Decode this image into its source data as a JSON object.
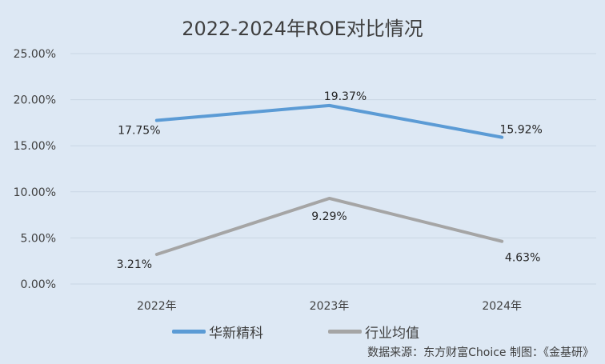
{
  "chart_data": {
    "type": "line",
    "title": "2022-2024年ROE对比情况",
    "categories": [
      "2022年",
      "2023年",
      "2024年"
    ],
    "series": [
      {
        "name": "华新精科",
        "values": [
          17.75,
          19.37,
          15.92
        ],
        "labels": [
          "17.75%",
          "19.37%",
          "15.92%"
        ],
        "color": "#5b9bd5"
      },
      {
        "name": "行业均值",
        "values": [
          3.21,
          9.29,
          4.63
        ],
        "labels": [
          "3.21%",
          "9.29%",
          "4.63%"
        ],
        "color": "#a5a5a5"
      }
    ],
    "yticks": [
      "0.00%",
      "5.00%",
      "10.00%",
      "15.00%",
      "20.00%",
      "25.00%"
    ],
    "ylim": [
      0,
      25
    ],
    "grid": true,
    "legend": "bottom",
    "xlabel": "",
    "ylabel": ""
  },
  "source": "数据来源：东方财富Choice   制图：《金基研》",
  "background": "#dde8f4"
}
